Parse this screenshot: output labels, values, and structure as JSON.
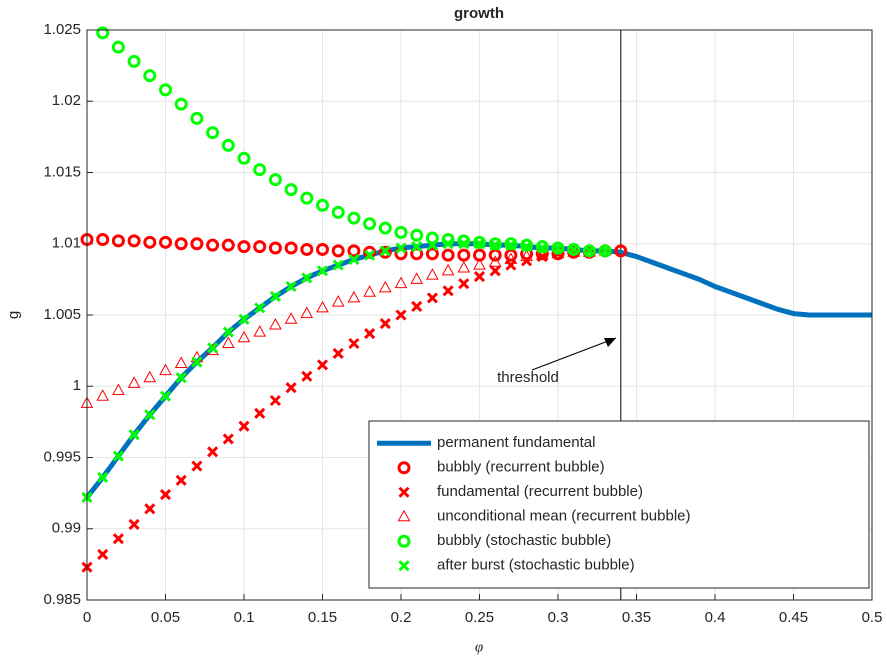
{
  "chart_data": {
    "type": "line",
    "title": "growth",
    "x_label": "φ",
    "y_label": "g",
    "xlim": [
      0,
      0.5
    ],
    "ylim": [
      0.985,
      1.025
    ],
    "xticks": [
      0,
      0.05,
      0.1,
      0.15,
      0.2,
      0.25,
      0.3,
      0.35,
      0.4,
      0.45,
      0.5
    ],
    "yticks": [
      0.985,
      0.99,
      0.995,
      1,
      1.005,
      1.01,
      1.015,
      1.02,
      1.025
    ],
    "grid": true,
    "legend": "southeast",
    "annotation": "threshold",
    "vline": 0.34,
    "series": [
      {
        "name": "permanent fundamental",
        "color": "#0072bd",
        "marker": "line",
        "x": [
          0,
          0.01,
          0.02,
          0.03,
          0.04,
          0.05,
          0.06,
          0.07,
          0.08,
          0.09,
          0.1,
          0.11,
          0.12,
          0.13,
          0.14,
          0.15,
          0.16,
          0.17,
          0.18,
          0.19,
          0.2,
          0.21,
          0.22,
          0.23,
          0.24,
          0.25,
          0.26,
          0.27,
          0.28,
          0.29,
          0.3,
          0.31,
          0.32,
          0.33,
          0.34,
          0.35,
          0.36,
          0.37,
          0.38,
          0.39,
          0.4,
          0.41,
          0.42,
          0.43,
          0.44,
          0.45,
          0.46,
          0.47,
          0.48,
          0.49,
          0.5
        ],
        "values": [
          0.9922,
          0.9936,
          0.9951,
          0.9966,
          0.998,
          0.9993,
          1.0006,
          1.0017,
          1.0027,
          1.0038,
          1.0047,
          1.0055,
          1.0063,
          1.007,
          1.0076,
          1.0081,
          1.0085,
          1.0089,
          1.0092,
          1.0095,
          1.0097,
          1.0098,
          1.0099,
          1.01,
          1.01,
          1.01,
          1.0099,
          1.0099,
          1.0098,
          1.0097,
          1.0097,
          1.0096,
          1.0095,
          1.0095,
          1.0094,
          1.0091,
          1.0087,
          1.0083,
          1.0079,
          1.0075,
          1.007,
          1.0066,
          1.0062,
          1.0058,
          1.0054,
          1.0051,
          1.005,
          1.005,
          1.005,
          1.005,
          1.005
        ]
      },
      {
        "name": "bubbly (recurrent bubble)",
        "color": "#ff0000",
        "marker": "o",
        "x": [
          0,
          0.01,
          0.02,
          0.03,
          0.04,
          0.05,
          0.06,
          0.07,
          0.08,
          0.09,
          0.1,
          0.11,
          0.12,
          0.13,
          0.14,
          0.15,
          0.16,
          0.17,
          0.18,
          0.19,
          0.2,
          0.21,
          0.22,
          0.23,
          0.24,
          0.25,
          0.26,
          0.27,
          0.28,
          0.29,
          0.3,
          0.31,
          0.32,
          0.33,
          0.34
        ],
        "values": [
          1.0103,
          1.0103,
          1.0102,
          1.0102,
          1.0101,
          1.0101,
          1.01,
          1.01,
          1.0099,
          1.0099,
          1.0098,
          1.0098,
          1.0097,
          1.0097,
          1.0096,
          1.0096,
          1.0095,
          1.0095,
          1.0094,
          1.0094,
          1.0093,
          1.0093,
          1.0093,
          1.0092,
          1.0092,
          1.0092,
          1.0092,
          1.0092,
          1.0093,
          1.0093,
          1.0093,
          1.0094,
          1.0094,
          1.0095,
          1.0095
        ]
      },
      {
        "name": "fundamental (recurrent bubble)",
        "color": "#ff0000",
        "marker": "x",
        "x": [
          0,
          0.01,
          0.02,
          0.03,
          0.04,
          0.05,
          0.06,
          0.07,
          0.08,
          0.09,
          0.1,
          0.11,
          0.12,
          0.13,
          0.14,
          0.15,
          0.16,
          0.17,
          0.18,
          0.19,
          0.2,
          0.21,
          0.22,
          0.23,
          0.24,
          0.25,
          0.26,
          0.27,
          0.28,
          0.29,
          0.3,
          0.31,
          0.32,
          0.33
        ],
        "values": [
          0.9873,
          0.9882,
          0.9893,
          0.9903,
          0.9914,
          0.9924,
          0.9934,
          0.9944,
          0.9954,
          0.9963,
          0.9972,
          0.9981,
          0.999,
          0.9999,
          1.0007,
          1.0015,
          1.0023,
          1.003,
          1.0037,
          1.0044,
          1.005,
          1.0056,
          1.0062,
          1.0067,
          1.0072,
          1.0077,
          1.0081,
          1.0085,
          1.0088,
          1.0091,
          1.0093,
          1.0094,
          1.0095,
          1.0095
        ]
      },
      {
        "name": "unconditional mean (recurrent bubble)",
        "color": "#ff0000",
        "marker": "^",
        "x": [
          0,
          0.01,
          0.02,
          0.03,
          0.04,
          0.05,
          0.06,
          0.07,
          0.08,
          0.09,
          0.1,
          0.11,
          0.12,
          0.13,
          0.14,
          0.15,
          0.16,
          0.17,
          0.18,
          0.19,
          0.2,
          0.21,
          0.22,
          0.23,
          0.24,
          0.25,
          0.26,
          0.27,
          0.28,
          0.29,
          0.3,
          0.31,
          0.32,
          0.33
        ],
        "values": [
          0.9988,
          0.9993,
          0.9997,
          1.0002,
          1.0006,
          1.0011,
          1.0016,
          1.002,
          1.0025,
          1.003,
          1.0034,
          1.0038,
          1.0043,
          1.0047,
          1.0051,
          1.0055,
          1.0059,
          1.0062,
          1.0066,
          1.0069,
          1.0072,
          1.0075,
          1.0078,
          1.0081,
          1.0083,
          1.0085,
          1.0087,
          1.0089,
          1.0091,
          1.0092,
          1.0093,
          1.0094,
          1.0094,
          1.0095
        ]
      },
      {
        "name": "bubbly (stochastic bubble)",
        "color": "#00ff00",
        "marker": "o",
        "x": [
          0.01,
          0.02,
          0.03,
          0.04,
          0.05,
          0.06,
          0.07,
          0.08,
          0.09,
          0.1,
          0.11,
          0.12,
          0.13,
          0.14,
          0.15,
          0.16,
          0.17,
          0.18,
          0.19,
          0.2,
          0.21,
          0.22,
          0.23,
          0.24,
          0.25,
          0.26,
          0.27,
          0.28,
          0.29,
          0.3,
          0.31,
          0.32,
          0.33
        ],
        "values": [
          1.0248,
          1.0238,
          1.0228,
          1.0218,
          1.0208,
          1.0198,
          1.0188,
          1.0178,
          1.0169,
          1.016,
          1.0152,
          1.0145,
          1.0138,
          1.0132,
          1.0127,
          1.0122,
          1.0118,
          1.0114,
          1.0111,
          1.0108,
          1.0106,
          1.0104,
          1.0103,
          1.0102,
          1.0101,
          1.01,
          1.01,
          1.0099,
          1.0098,
          1.0097,
          1.0096,
          1.0095,
          1.0095
        ]
      },
      {
        "name": "after burst (stochastic bubble)",
        "color": "#00ff00",
        "marker": "x",
        "x": [
          0,
          0.01,
          0.02,
          0.03,
          0.04,
          0.05,
          0.06,
          0.07,
          0.08,
          0.09,
          0.1,
          0.11,
          0.12,
          0.13,
          0.14,
          0.15,
          0.16,
          0.17,
          0.18,
          0.19,
          0.2,
          0.21,
          0.22,
          0.23,
          0.24,
          0.25,
          0.26,
          0.27,
          0.28,
          0.29,
          0.3,
          0.31,
          0.32,
          0.33
        ],
        "values": [
          0.9922,
          0.9936,
          0.9951,
          0.9966,
          0.998,
          0.9993,
          1.0006,
          1.0017,
          1.0027,
          1.0038,
          1.0047,
          1.0055,
          1.0063,
          1.007,
          1.0076,
          1.0081,
          1.0085,
          1.0089,
          1.0092,
          1.0095,
          1.0097,
          1.0098,
          1.0099,
          1.01,
          1.01,
          1.01,
          1.0099,
          1.0099,
          1.0098,
          1.0097,
          1.0097,
          1.0096,
          1.0095,
          1.0095
        ]
      }
    ]
  }
}
